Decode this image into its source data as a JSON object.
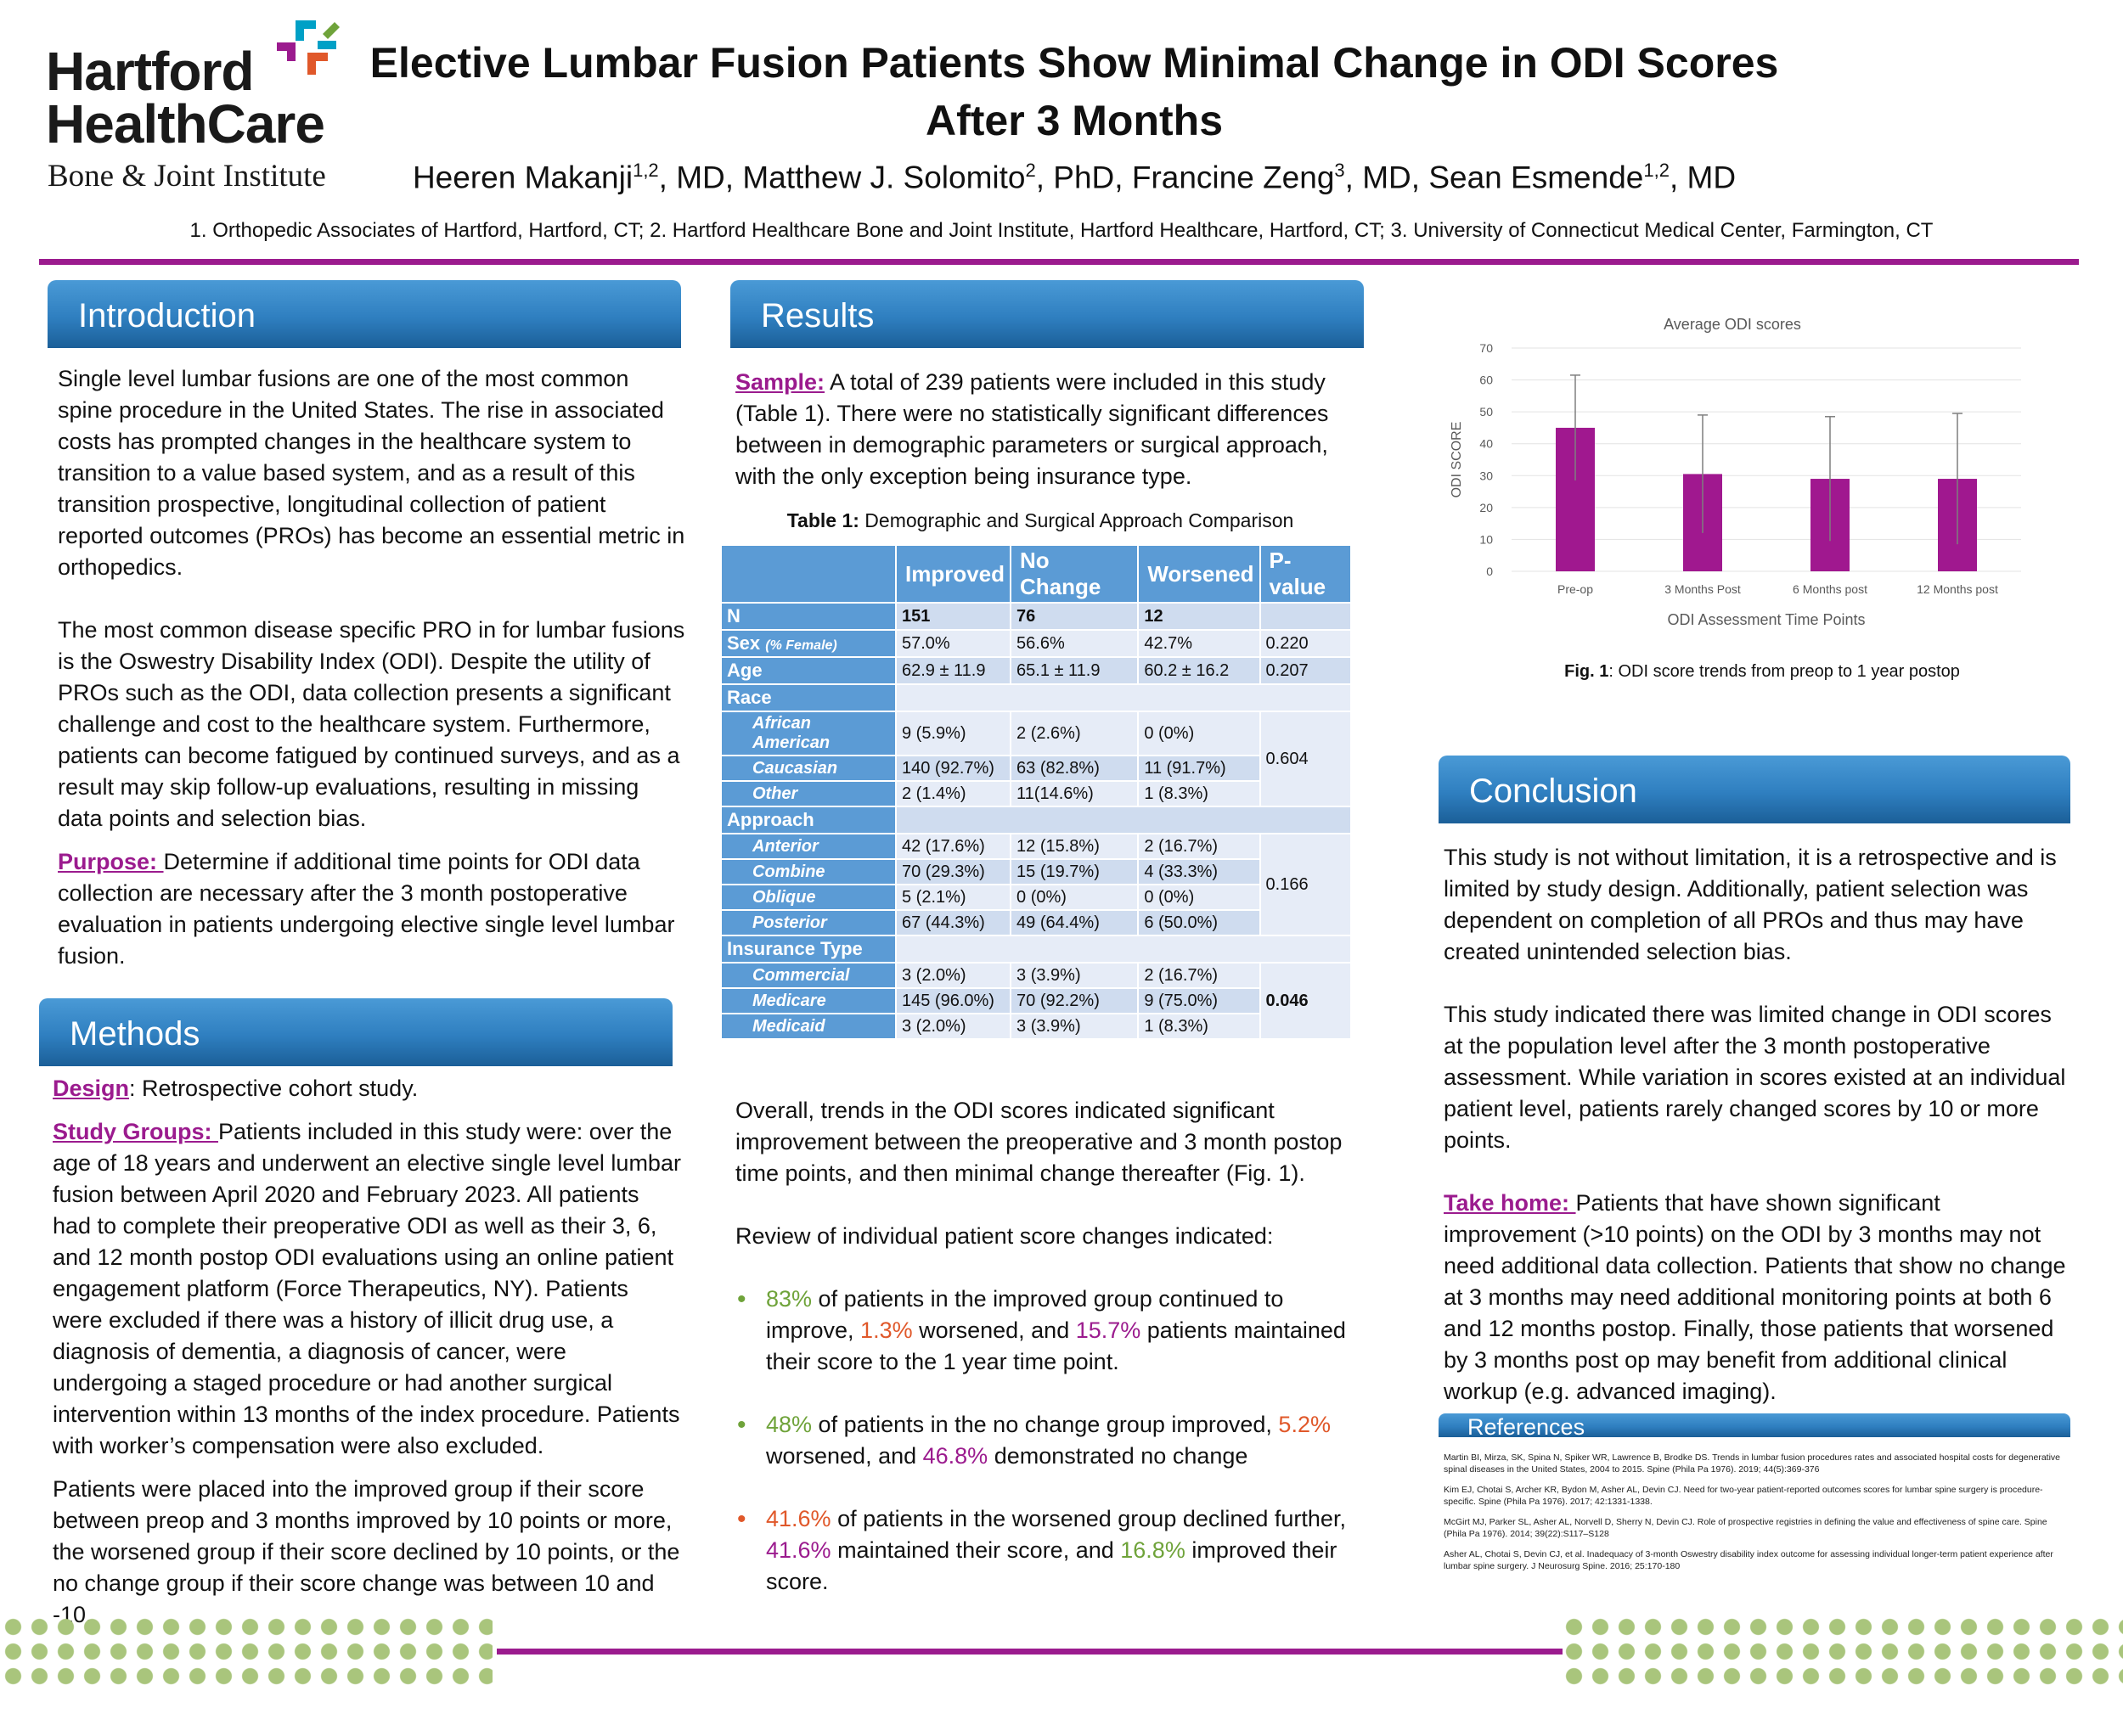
{
  "logo": {
    "line1": "Hartford",
    "line2": "HealthCare",
    "line3": "Bone & Joint Institute",
    "colors": [
      "#00a0c6",
      "#9b1b8e",
      "#e0582a",
      "#6fa33a"
    ]
  },
  "header": {
    "title_line1": "Elective Lumbar Fusion Patients Show  Minimal Change in ODI Scores",
    "title_line2": "After 3 Months",
    "authors": [
      {
        "name": "Heeren Makanji",
        "sup": "1,2",
        "suffix": ", MD, "
      },
      {
        "name": "Matthew J. Solomito",
        "sup": "2",
        "suffix": ", PhD, "
      },
      {
        "name": "Francine Zeng",
        "sup": "3",
        "suffix": ", MD, "
      },
      {
        "name": "Sean Esmende",
        "sup": "1,2",
        "suffix": ", MD"
      }
    ],
    "affiliations": "1. Orthopedic Associates of Hartford, Hartford, CT; 2. Hartford Healthcare Bone and Joint Institute, Hartford Healthcare, Hartford, CT; 3. University of Connecticut Medical Center, Farmington, CT"
  },
  "introduction": {
    "heading": "Introduction",
    "para1": "Single level lumbar fusions are one of the most common spine procedure in the United States. The rise in associated costs has prompted changes in the healthcare system to transition to a value based system, and as a result of this transition prospective, longitudinal collection of patient reported outcomes (PROs) has become an essential metric in orthopedics.",
    "para2": "The most common disease specific PRO in for lumbar fusions is the Oswestry Disability Index (ODI). Despite the utility of PROs such as the ODI, data collection presents a significant challenge and cost to the healthcare system. Furthermore, patients can become fatigued by continued surveys, and as a result may skip follow-up evaluations, resulting in missing data points and selection bias.",
    "purpose_label": "Purpose: ",
    "purpose_text": "Determine if additional time points for ODI data collection are necessary after the 3 month postoperative evaluation in patients undergoing elective single level lumbar fusion."
  },
  "methods": {
    "heading": "Methods",
    "design_label": "Design",
    "design_colon": ": ",
    "design_text": "Retrospective cohort study.",
    "groups_label": "Study Groups: ",
    "groups_text": "Patients included in this study were: over the age of 18 years and underwent an elective single level lumbar fusion between April 2020 and February 2023. All patients had to complete their preoperative ODI as well as their 3, 6, and 12 month postop ODI evaluations using an online patient engagement platform (Force Therapeutics, NY).  Patients were excluded if there was a history of illicit drug use, a diagnosis of dementia, a diagnosis of cancer, were undergoing a staged procedure or had another surgical intervention within 13 months of the index procedure. Patients with worker’s compensation were also excluded.",
    "para3": "Patients were placed into the improved group if their score between preop and 3 months improved by 10 points or more, the worsened group if their score declined by 10 points, or the no change group if their score change was between 10 and -10."
  },
  "results": {
    "heading": "Results",
    "sample_label": "Sample:",
    "sample_text": "  A total of 239 patients were included in this study (Table 1).  There were no statistically significant differences between in demographic parameters or surgical approach, with the only exception being insurance type.",
    "table_caption_bold": "Table 1:",
    "table_caption_text": " Demographic and Surgical Approach Comparison",
    "table": {
      "columns": [
        "Improved",
        "No Change",
        "Worsened",
        "P-value"
      ],
      "n_label": "N",
      "n_values": [
        "151",
        "76",
        "12"
      ],
      "sex_label": "Sex",
      "sex_note": "(% Female)",
      "sex_values": [
        "57.0%",
        "56.6%",
        "42.7%"
      ],
      "sex_p": "0.220",
      "age_label": "Age",
      "age_values": [
        "62.9 ± 11.9",
        "65.1 ± 11.9",
        "60.2 ± 16.2"
      ],
      "age_p": "0.207",
      "race_label": "Race",
      "race_rows": [
        {
          "label": "African American",
          "values": [
            "9 (5.9%)",
            "2 (2.6%)",
            "0 (0%)"
          ]
        },
        {
          "label": "Caucasian",
          "values": [
            "140 (92.7%)",
            "63 (82.8%)",
            "11 (91.7%)"
          ]
        },
        {
          "label": "Other",
          "values": [
            "2 (1.4%)",
            "11(14.6%)",
            "1 (8.3%)"
          ]
        }
      ],
      "race_p": "0.604",
      "approach_label": "Approach",
      "approach_rows": [
        {
          "label": "Anterior",
          "values": [
            "42 (17.6%)",
            "12 (15.8%)",
            "2 (16.7%)"
          ]
        },
        {
          "label": "Combine",
          "values": [
            "70 (29.3%)",
            "15 (19.7%)",
            "4 (33.3%)"
          ]
        },
        {
          "label": "Oblique",
          "values": [
            "5 (2.1%)",
            "0 (0%)",
            "0 (0%)"
          ]
        },
        {
          "label": "Posterior",
          "values": [
            "67 (44.3%)",
            "49 (64.4%)",
            "6 (50.0%)"
          ]
        }
      ],
      "approach_p": "0.166",
      "insurance_label": "Insurance Type",
      "insurance_rows": [
        {
          "label": "Commercial",
          "values": [
            "3 (2.0%)",
            "3 (3.9%)",
            "2 (16.7%)"
          ]
        },
        {
          "label": "Medicare",
          "values": [
            "145 (96.0%)",
            "70 (92.2%)",
            "9 (75.0%)"
          ]
        },
        {
          "label": "Medicaid",
          "values": [
            "3 (2.0%)",
            "3 (3.9%)",
            "1 (8.3%)"
          ]
        }
      ],
      "insurance_p": "0.046"
    },
    "overall": "Overall, trends in the ODI scores indicated significant improvement between the preoperative and 3 month postop time points, and then minimal change thereafter (Fig. 1).",
    "review": "Review of individual patient score changes indicated:",
    "bullet1": {
      "a": "83%",
      "b": " of patients in the improved group continued to improve, ",
      "c": "1.3%",
      "d": " worsened, and ",
      "e": "15.7%",
      "f": " patients maintained their score to the 1 year time point."
    },
    "bullet2": {
      "a": "48%",
      "b": " of patients in the no change group improved, ",
      "c": "5.2%",
      "d": " worsened, and ",
      "e": "46.8%",
      "f": " demonstrated no change"
    },
    "bullet3": {
      "a": "41.6%",
      "b": " of patients in the worsened group declined further, ",
      "c": "41.6%",
      "d": " maintained their score, and ",
      "e": "16.8%",
      "f": " improved their score."
    },
    "bullet_marker": "•"
  },
  "chart_data": {
    "type": "bar",
    "title": "Average ODI scores",
    "xlabel": "ODI Assessment  Time Points",
    "ylabel": "ODI SCORE",
    "categories": [
      "Pre-op",
      "3 Months Post",
      "6 Months post",
      "12 Months post"
    ],
    "values": [
      45,
      30.5,
      29,
      29
    ],
    "error": [
      16.5,
      18.5,
      19.5,
      20.5
    ],
    "ylim": [
      0,
      70
    ],
    "yticks": [
      0,
      10,
      20,
      30,
      40,
      50,
      60,
      70
    ],
    "grid": true,
    "bar_color": "#a0188f"
  },
  "figure": {
    "caption_bold": "Fig. 1",
    "caption_text": ": ODI score trends from preop to 1 year postop"
  },
  "conclusion": {
    "heading": "Conclusion",
    "para1": "This study is not without limitation, it is a retrospective and is limited by study design. Additionally, patient selection was dependent on completion of all PROs and thus may have created unintended selection bias.",
    "para2": "This study indicated there was limited change in ODI scores at the population level after the 3 month postoperative assessment. While variation in scores existed at an individual patient level, patients rarely changed scores by 10 or more points.",
    "takehome_label": "Take home: ",
    "takehome_text": "Patients that have shown significant improvement (>10 points) on the ODI by 3 months may not need additional data collection. Patients that show no change at 3 months may need additional monitoring points at both 6 and 12 months postop. Finally, those patients that worsened by 3 months post op may benefit from additional clinical workup (e.g. advanced imaging)."
  },
  "references": {
    "heading": "References",
    "items": [
      "Martin BI, Mirza, SK, Spina N, Spiker WR, Lawrence B, Brodke DS. Trends in lumbar fusion procedures rates and associated hospital costs for degenerative spinal diseases in the United States, 2004 to 2015. Spine (Phila Pa 1976). 2019; 44(5):369-376",
      "Kim EJ, Chotai S, Archer KR, Bydon M, Asher AL, Devin CJ. Need for two-year patient-reported outcomes scores for lumbar spine surgery is procedure-specific.  Spine (Phila Pa 1976). 2017; 42:1331-1338.",
      "McGirt MJ, Parker SL, Asher AL, Norvell D, Sherry N, Devin CJ. Role of prospective registries in defining the value and effectiveness of spine care. Spine (Phila Pa 1976). 2014; 39(22):S117–S128",
      "Asher AL, Chotai S, Devin CJ, et al. Inadequacy of 3-month Oswestry disability index outcome for assessing individual longer-term patient experience after lumbar spine surgery. J Neurosurg Spine. 2016; 25:170-180"
    ]
  }
}
